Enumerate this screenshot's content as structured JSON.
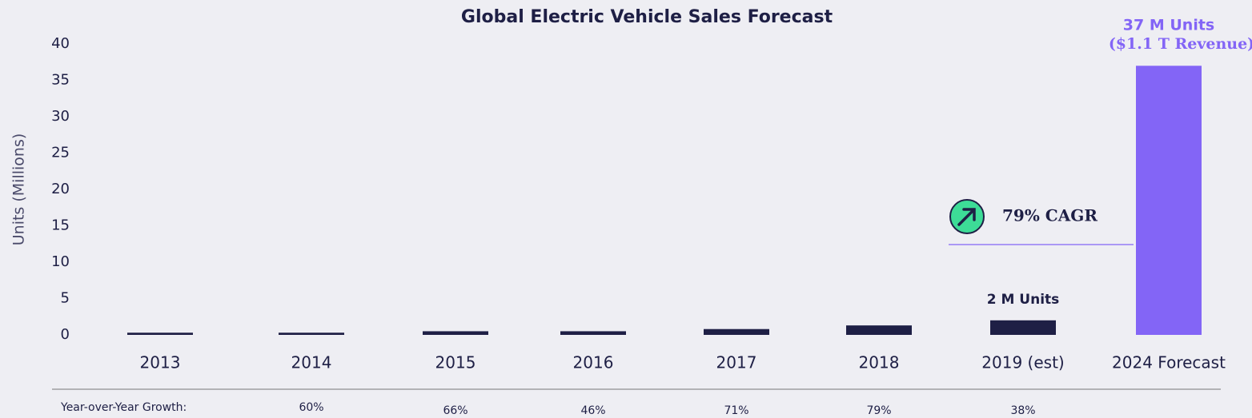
{
  "chart_data": {
    "type": "bar",
    "title": "Global Electric Vehicle Sales Forecast",
    "y_label": "Units (Millions)",
    "categories": [
      "2013",
      "2014",
      "2015",
      "2016",
      "2017",
      "2018",
      "2019 (est)",
      "2024 Forecast"
    ],
    "values": [
      0.3,
      0.3,
      0.5,
      0.5,
      0.8,
      1.3,
      2,
      37
    ],
    "value_labels": [
      null,
      null,
      null,
      null,
      null,
      null,
      "2 M Units",
      "37 M Units"
    ],
    "colors": [
      "#1e1f45",
      "#1e1f45",
      "#1e1f45",
      "#1e1f45",
      "#1e1f45",
      "#1e1f45",
      "#1e1f45",
      "#8365f6"
    ],
    "ylim": [
      0,
      40
    ],
    "yticks": [
      0,
      5,
      10,
      15,
      20,
      25,
      30,
      35,
      40
    ],
    "grid": false,
    "revenue_note": "($1.1 T Revenue)",
    "cagr_label": "79% CAGR",
    "growth": {
      "label": "Year-over-Year Growth:",
      "values": [
        "60%",
        "66%",
        "46%",
        "71%",
        "79%",
        "38%"
      ]
    }
  }
}
